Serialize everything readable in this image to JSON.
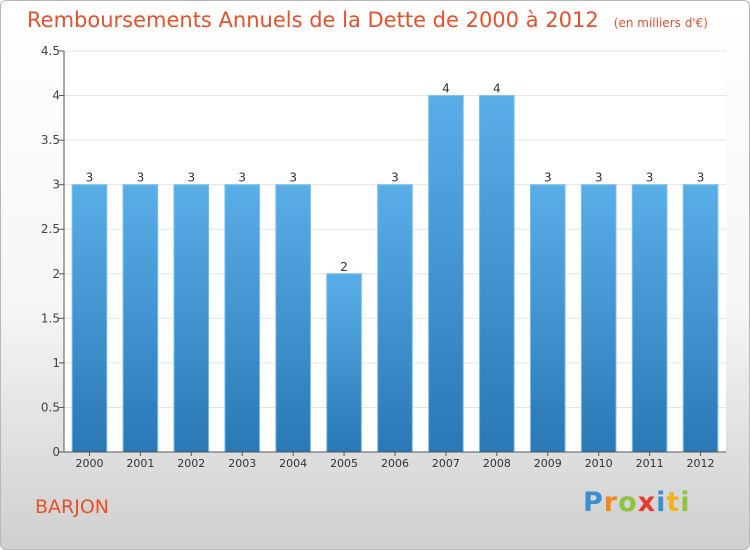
{
  "chart_data": {
    "type": "bar",
    "title": "Remboursements Annuels de la Dette de 2000 à 2012",
    "unit": "(en milliers d'€)",
    "categories": [
      "2000",
      "2001",
      "2002",
      "2003",
      "2004",
      "2005",
      "2006",
      "2007",
      "2008",
      "2009",
      "2010",
      "2011",
      "2012"
    ],
    "values": [
      3,
      3,
      3,
      3,
      3,
      2,
      3,
      4,
      4,
      3,
      3,
      3,
      3
    ],
    "data_labels": [
      "3",
      "3",
      "3",
      "3",
      "3",
      "2",
      "3",
      "4",
      "4",
      "3",
      "3",
      "3",
      "3"
    ],
    "ylim": [
      0,
      4.5
    ],
    "yticks": [
      {
        "value": 0,
        "label": "0"
      },
      {
        "value": 0.5,
        "label": "0.5"
      },
      {
        "value": 1,
        "label": "1"
      },
      {
        "value": 1.5,
        "label": "1.5"
      },
      {
        "value": 2,
        "label": "2"
      },
      {
        "value": 2.5,
        "label": "2.5"
      },
      {
        "value": 3,
        "label": "3"
      },
      {
        "value": 3.5,
        "label": "3.5"
      },
      {
        "value": 4,
        "label": "4"
      },
      {
        "value": 4.5,
        "label": "4.5"
      }
    ],
    "grid": true,
    "legend": "none",
    "bar_color_top": "#5aaee8",
    "bar_color_bottom": "#2a78b6"
  },
  "footer": {
    "location": "BARJON",
    "brand_letters": [
      {
        "ch": "P",
        "color": "#3a8fd0"
      },
      {
        "ch": "r",
        "color": "#f08a1e"
      },
      {
        "ch": "o",
        "color": "#8cc43c"
      },
      {
        "ch": "x",
        "color": "#e53a2c"
      },
      {
        "ch": "i",
        "color": "#3a8fd0"
      },
      {
        "ch": "t",
        "color": "#f0b21e"
      },
      {
        "ch": "i",
        "color": "#8cc43c"
      }
    ]
  }
}
